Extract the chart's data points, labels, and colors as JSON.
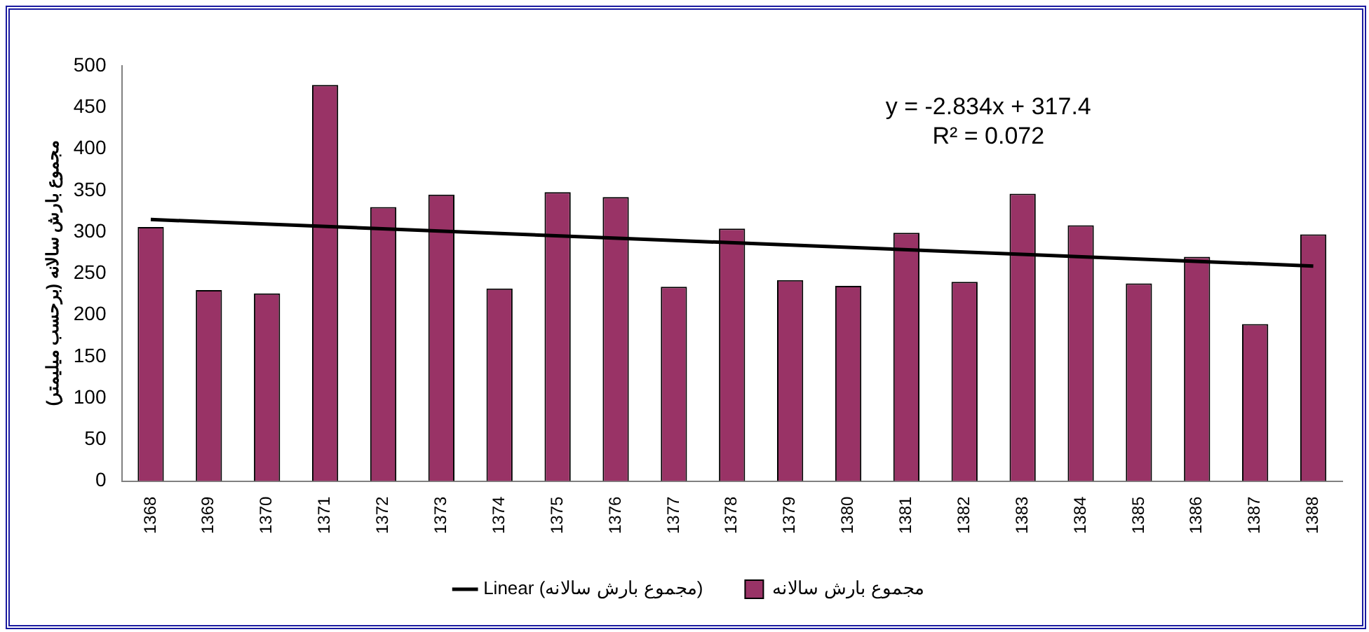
{
  "chart_data": {
    "type": "bar",
    "ylabel": "مجموع بارش سالانه (برحسب میلیمتر)",
    "categories": [
      "1368",
      "1369",
      "1370",
      "1371",
      "1372",
      "1373",
      "1374",
      "1375",
      "1376",
      "1377",
      "1378",
      "1379",
      "1380",
      "1381",
      "1382",
      "1383",
      "1384",
      "1385",
      "1386",
      "1387",
      "1388"
    ],
    "series": [
      {
        "name": "مجموع بارش سالانه",
        "color": "#993366",
        "values": [
          306,
          230,
          226,
          477,
          330,
          345,
          232,
          348,
          342,
          234,
          304,
          242,
          235,
          299,
          240,
          346,
          308,
          238,
          270,
          189,
          297
        ]
      },
      {
        "name": "Linear (مجموع بارش سالانه)",
        "type": "line",
        "color": "#000000",
        "values": [
          315,
          null,
          null,
          null,
          null,
          null,
          null,
          null,
          null,
          null,
          null,
          null,
          null,
          null,
          null,
          null,
          null,
          null,
          null,
          null,
          259
        ]
      }
    ],
    "ylim": [
      0,
      500
    ],
    "yticks": [
      0,
      50,
      100,
      150,
      200,
      250,
      300,
      350,
      400,
      450,
      500
    ],
    "grid": false,
    "legend": "bottom",
    "annotations": [
      "y = -2.834x + 317.4",
      "R² = 0.072"
    ]
  }
}
